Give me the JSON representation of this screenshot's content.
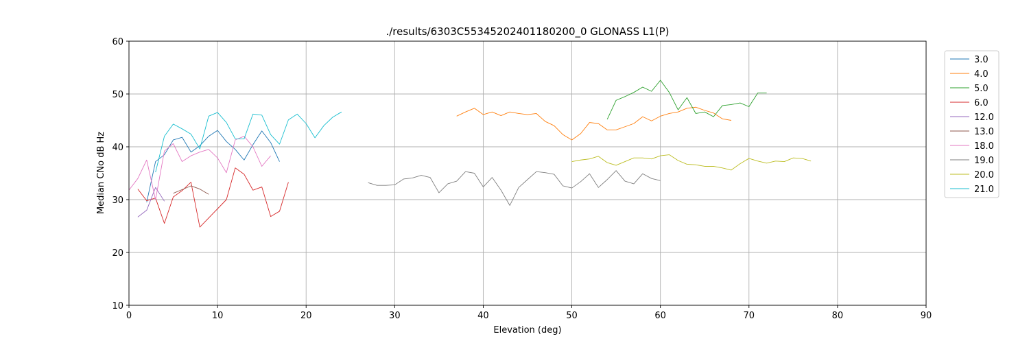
{
  "chart_data": {
    "type": "line",
    "title": "./results/6303C55345202401180200_0 GLONASS L1(P)",
    "xlabel": "Elevation (deg)",
    "ylabel": "Median CNo dB Hz",
    "xlim": [
      0,
      90
    ],
    "ylim": [
      10,
      60
    ],
    "xticks": [
      "0",
      "10",
      "20",
      "30",
      "40",
      "50",
      "60",
      "70",
      "80",
      "90"
    ],
    "yticks": [
      "10",
      "20",
      "30",
      "40",
      "50",
      "60"
    ],
    "grid": true,
    "legend_position": "right",
    "series": [
      {
        "name": "3.0",
        "color": "#1f77b4",
        "x": [
          2,
          3,
          4,
          5,
          6,
          7,
          8,
          9,
          10,
          11,
          12,
          13,
          14,
          15,
          16,
          17
        ],
        "y": [
          29.5,
          37.2,
          38.5,
          41.3,
          41.8,
          39.0,
          40.2,
          42.0,
          43.1,
          41.0,
          39.5,
          37.5,
          40.4,
          43.0,
          40.8,
          37.2
        ]
      },
      {
        "name": "4.0",
        "color": "#ff7f0e",
        "x": [
          37,
          38,
          39,
          40,
          41,
          42,
          43,
          44,
          45,
          46,
          47,
          48,
          49,
          50,
          51,
          52,
          53,
          54,
          55,
          56,
          57,
          58,
          59,
          60,
          61,
          62,
          63,
          64,
          65,
          66,
          67,
          68
        ],
        "y": [
          45.8,
          46.6,
          47.3,
          46.1,
          46.6,
          45.9,
          46.6,
          46.3,
          46.1,
          46.3,
          44.8,
          44.0,
          42.3,
          41.3,
          42.5,
          44.6,
          44.4,
          43.2,
          43.2,
          43.8,
          44.4,
          45.7,
          44.9,
          45.8,
          46.3,
          46.6,
          47.3,
          47.5,
          46.9,
          46.4,
          45.3,
          45.0
        ]
      },
      {
        "name": "5.0",
        "color": "#2ca02c",
        "x": [
          54,
          55,
          56,
          57,
          58,
          59,
          60,
          61,
          62,
          63,
          64,
          65,
          66,
          67,
          68,
          69,
          70,
          71,
          72
        ],
        "y": [
          45.2,
          48.8,
          49.5,
          50.3,
          51.3,
          50.5,
          52.6,
          50.3,
          47.0,
          49.3,
          46.3,
          46.6,
          45.7,
          47.8,
          48.0,
          48.3,
          47.6,
          50.2,
          50.2
        ]
      },
      {
        "name": "6.0",
        "color": "#d62728",
        "x": [
          1,
          2,
          3,
          4,
          5,
          6,
          7,
          8,
          11,
          12,
          13,
          14,
          15,
          16,
          17,
          18
        ],
        "y": [
          32.0,
          29.8,
          30.3,
          25.5,
          30.5,
          31.7,
          33.3,
          24.8,
          30.0,
          36.0,
          34.8,
          31.8,
          32.4,
          26.8,
          27.8,
          33.3
        ]
      },
      {
        "name": "12.0",
        "color": "#9467bd",
        "x": [
          1,
          2,
          3,
          4
        ],
        "y": [
          26.7,
          28.0,
          32.3,
          29.7
        ]
      },
      {
        "name": "13.0",
        "color": "#8c564b",
        "x": [
          5,
          6,
          7,
          8,
          9
        ],
        "y": [
          31.2,
          31.9,
          32.6,
          32.0,
          31.0
        ]
      },
      {
        "name": "18.0",
        "color": "#e377c2",
        "x": [
          0,
          1,
          2,
          3,
          4,
          5,
          6,
          7,
          8,
          9,
          10,
          11,
          12,
          13,
          14,
          15,
          16
        ],
        "y": [
          31.8,
          34.0,
          37.5,
          30.0,
          39.2,
          40.6,
          37.2,
          38.3,
          39.0,
          39.5,
          37.9,
          35.1,
          41.3,
          42.0,
          40.0,
          36.3,
          38.3
        ]
      },
      {
        "name": "19.0",
        "color": "#7f7f7f",
        "x": [
          27,
          28,
          29,
          30,
          31,
          32,
          33,
          34,
          35,
          36,
          37,
          38,
          39,
          40,
          41,
          42,
          43,
          44,
          45,
          46,
          47,
          48,
          49,
          50,
          51,
          52,
          53,
          54,
          55,
          56,
          57,
          58,
          59,
          60
        ],
        "y": [
          33.2,
          32.7,
          32.7,
          32.8,
          33.9,
          34.1,
          34.6,
          34.2,
          31.3,
          33.0,
          33.5,
          35.3,
          35.0,
          32.4,
          34.2,
          31.8,
          28.9,
          32.3,
          33.8,
          35.3,
          35.1,
          34.8,
          32.6,
          32.2,
          33.4,
          34.9,
          32.3,
          33.8,
          35.5,
          33.5,
          33.0,
          34.9,
          34.0,
          33.6
        ]
      },
      {
        "name": "20.0",
        "color": "#bcbd22",
        "x": [
          50,
          51,
          52,
          53,
          54,
          55,
          56,
          57,
          58,
          59,
          60,
          61,
          62,
          63,
          64,
          65,
          66,
          67,
          68,
          69,
          70,
          71,
          72,
          73,
          74,
          75,
          76,
          77
        ],
        "y": [
          37.2,
          37.5,
          37.7,
          38.2,
          37.0,
          36.5,
          37.2,
          37.9,
          37.9,
          37.7,
          38.3,
          38.5,
          37.4,
          36.7,
          36.6,
          36.3,
          36.3,
          36.0,
          35.6,
          36.8,
          37.8,
          37.3,
          36.9,
          37.3,
          37.2,
          37.9,
          37.8,
          37.3
        ]
      },
      {
        "name": "21.0",
        "color": "#17becf",
        "x": [
          3,
          4,
          5,
          6,
          7,
          8,
          9,
          10,
          11,
          12,
          13,
          14,
          15,
          16,
          17,
          18,
          19,
          20,
          21,
          22,
          23,
          24
        ],
        "y": [
          35.2,
          42.0,
          44.3,
          43.4,
          42.4,
          39.6,
          45.8,
          46.5,
          44.6,
          41.5,
          41.5,
          46.2,
          46.0,
          42.3,
          40.5,
          45.1,
          46.2,
          44.4,
          41.7,
          44.0,
          45.6,
          46.6
        ]
      }
    ]
  }
}
